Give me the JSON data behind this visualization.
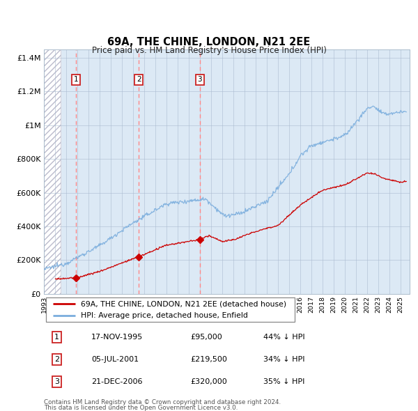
{
  "title": "69A, THE CHINE, LONDON, N21 2EE",
  "subtitle": "Price paid vs. HM Land Registry's House Price Index (HPI)",
  "ylim": [
    0,
    1450000
  ],
  "yticks": [
    0,
    200000,
    400000,
    600000,
    800000,
    1000000,
    1200000,
    1400000
  ],
  "ytick_labels": [
    "£0",
    "£200K",
    "£400K",
    "£600K",
    "£800K",
    "£1M",
    "£1.2M",
    "£1.4M"
  ],
  "xmin": 1993.0,
  "xmax": 2025.8,
  "purchases": [
    {
      "date_year": 1995.88,
      "price": 95000,
      "label": "1",
      "pct": "44% ↓ HPI",
      "display_date": "17-NOV-1995"
    },
    {
      "date_year": 2001.51,
      "price": 219500,
      "label": "2",
      "pct": "34% ↓ HPI",
      "display_date": "05-JUL-2001"
    },
    {
      "date_year": 2006.97,
      "price": 320000,
      "label": "3",
      "pct": "35% ↓ HPI",
      "display_date": "21-DEC-2006"
    }
  ],
  "legend_line1": "69A, THE CHINE, LONDON, N21 2EE (detached house)",
  "legend_line2": "HPI: Average price, detached house, Enfield",
  "footer1": "Contains HM Land Registry data © Crown copyright and database right 2024.",
  "footer2": "This data is licensed under the Open Government Licence v3.0.",
  "red_color": "#cc0000",
  "blue_color": "#7aaddd",
  "bg_color": "#dce9f5",
  "grid_color": "#aabbd0",
  "vline_color": "#ff8888",
  "hatch_end_year": 1994.5
}
